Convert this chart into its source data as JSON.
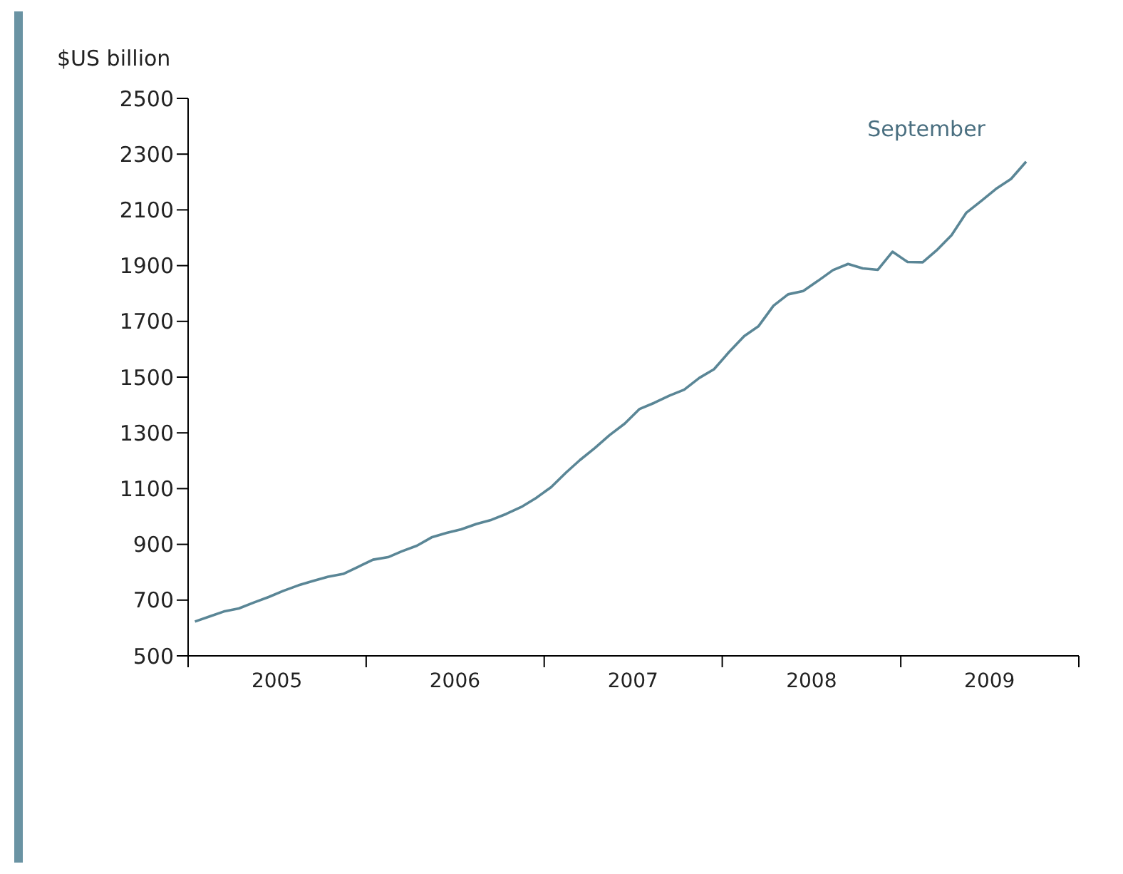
{
  "chart_data": {
    "type": "line",
    "ylabel": "$US billion",
    "x": [
      "2005-01-15",
      "2005-02-15",
      "2005-03-15",
      "2005-04-15",
      "2005-05-15",
      "2005-06-15",
      "2005-07-15",
      "2005-08-15",
      "2005-09-15",
      "2005-10-15",
      "2005-11-15",
      "2005-12-15",
      "2006-01-15",
      "2006-02-15",
      "2006-03-15",
      "2006-04-15",
      "2006-05-15",
      "2006-06-15",
      "2006-07-15",
      "2006-08-15",
      "2006-09-15",
      "2006-10-15",
      "2006-11-15",
      "2006-12-15",
      "2007-01-15",
      "2007-02-15",
      "2007-03-15",
      "2007-04-15",
      "2007-05-15",
      "2007-06-15",
      "2007-07-15",
      "2007-08-15",
      "2007-09-15",
      "2007-10-15",
      "2007-11-15",
      "2007-12-15",
      "2008-01-15",
      "2008-02-15",
      "2008-03-15",
      "2008-04-15",
      "2008-05-15",
      "2008-06-15",
      "2008-07-15",
      "2008-08-15",
      "2008-09-15",
      "2008-10-15",
      "2008-11-15",
      "2008-12-15",
      "2009-01-15",
      "2009-02-15",
      "2009-03-15",
      "2009-04-15",
      "2009-05-15",
      "2009-06-15",
      "2009-07-15",
      "2009-08-15",
      "2009-09-15"
    ],
    "series": [
      {
        "color": "#5a8696",
        "values": [
          623,
          642,
          659,
          670,
          691,
          711,
          733,
          753,
          769,
          784,
          794,
          819,
          845,
          854,
          875,
          895,
          925,
          941,
          954,
          973,
          988,
          1009,
          1034,
          1066,
          1105,
          1158,
          1202,
          1246,
          1292,
          1333,
          1385,
          1408,
          1434,
          1455,
          1497,
          1528,
          1590,
          1647,
          1682,
          1756,
          1797,
          1809,
          1845,
          1884,
          1906,
          1890,
          1885,
          1950,
          1913,
          1912,
          1954,
          2009,
          2089,
          2132,
          2175,
          2211,
          2273
        ]
      }
    ],
    "xlim": [
      "2005-01-01",
      "2010-01-01"
    ],
    "xticks": [
      {
        "value": "2005-01-01",
        "label": null
      },
      {
        "value": "2005-07-02",
        "label": "2005"
      },
      {
        "value": "2006-01-01",
        "label": null
      },
      {
        "value": "2006-07-02",
        "label": "2006"
      },
      {
        "value": "2007-01-01",
        "label": null
      },
      {
        "value": "2007-07-02",
        "label": "2007"
      },
      {
        "value": "2008-01-01",
        "label": null
      },
      {
        "value": "2008-07-02",
        "label": "2008"
      },
      {
        "value": "2009-01-01",
        "label": null
      },
      {
        "value": "2009-07-02",
        "label": "2009"
      },
      {
        "value": "2010-01-01",
        "label": null
      }
    ],
    "ylim": [
      500,
      2500
    ],
    "yticks": [
      500,
      700,
      900,
      1100,
      1300,
      1500,
      1700,
      1900,
      2100,
      2300,
      2500
    ],
    "grid": false,
    "marker": "none",
    "line_style": "solid",
    "annotations": [
      {
        "text": "September",
        "x": "2009-09-15",
        "y": 2273
      }
    ]
  }
}
